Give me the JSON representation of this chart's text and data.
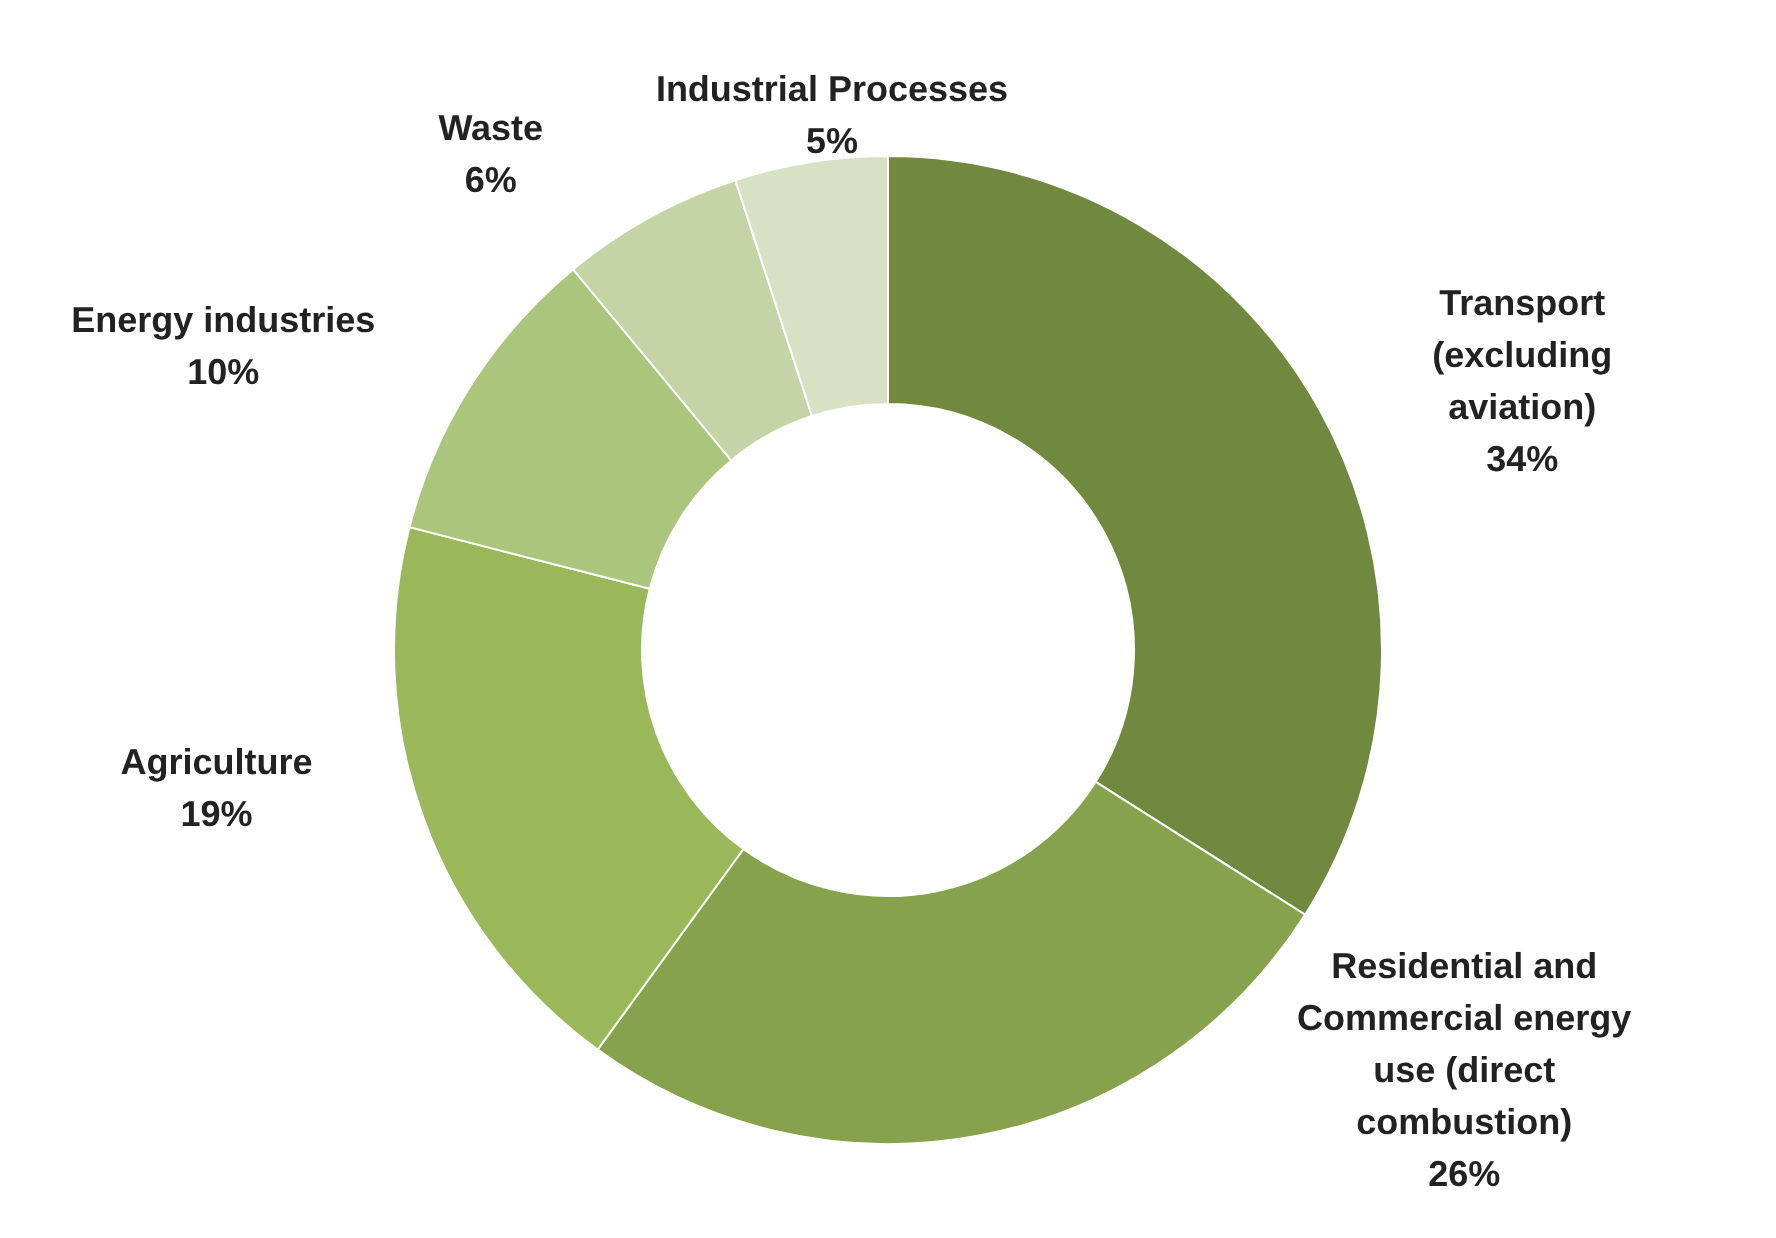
{
  "chart_data": {
    "type": "donut",
    "categories": [
      "Transport (excluding aviation)",
      "Residential and Commercial energy use (direct combustion)",
      "Agriculture",
      "Energy industries",
      "Waste",
      "Industrial Processes"
    ],
    "values": [
      34,
      26,
      19,
      10,
      6,
      5
    ],
    "colors": [
      "#71893f",
      "#86a24d",
      "#9ab85a",
      "#aac57c",
      "#c4d4a6",
      "#d7e2c4"
    ],
    "value_labels": [
      "34%",
      "26%",
      "19%",
      "10%",
      "6%",
      "5%"
    ]
  }
}
